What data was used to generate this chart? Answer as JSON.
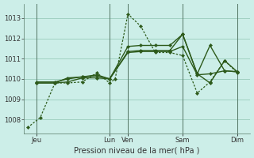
{
  "background_color": "#cceee8",
  "grid_color": "#99ccbb",
  "line_color": "#2d5a1b",
  "xlabel": "Pression niveau de la mer( hPa )",
  "yticks": [
    1008,
    1009,
    1010,
    1011,
    1012,
    1013
  ],
  "ylim": [
    1007.3,
    1013.7
  ],
  "xlim": [
    -0.2,
    12.2
  ],
  "xlabel_fontsize": 7,
  "ytick_fontsize": 6,
  "xtick_fontsize": 6,
  "xtick_labels": [
    "Jeu",
    "Lun",
    "Ven",
    "Sam",
    "Dim"
  ],
  "xtick_positions": [
    0.5,
    4.5,
    5.5,
    8.5,
    11.5
  ],
  "vline_positions": [
    0.5,
    4.5,
    5.5,
    8.5,
    11.5
  ],
  "series": [
    {
      "x": [
        0.0,
        0.7,
        1.5,
        2.2,
        3.0,
        3.8,
        4.5,
        4.8,
        5.5,
        6.2,
        7.0,
        7.8,
        8.5,
        9.3,
        10.0,
        10.8,
        11.5
      ],
      "y": [
        1007.6,
        1008.1,
        1009.8,
        1009.8,
        1009.85,
        1010.3,
        1009.8,
        1010.0,
        1013.2,
        1012.6,
        1011.3,
        1011.3,
        1011.15,
        1009.3,
        1009.85,
        1010.9,
        1010.3
      ],
      "style": "dotted",
      "linewidth": 0.9,
      "markersize": 2.2
    },
    {
      "x": [
        0.5,
        1.5,
        2.2,
        3.0,
        3.8,
        4.5,
        5.5,
        6.2,
        7.0,
        7.8,
        8.5,
        9.3,
        10.0,
        10.8,
        11.5
      ],
      "y": [
        1009.8,
        1009.8,
        1009.85,
        1010.05,
        1010.05,
        1010.0,
        1011.3,
        1011.35,
        1011.35,
        1011.35,
        1011.6,
        1010.2,
        1010.25,
        1010.4,
        1010.35
      ],
      "style": "solid",
      "linewidth": 1.0,
      "markersize": 2.2
    },
    {
      "x": [
        0.5,
        1.5,
        2.2,
        3.0,
        3.8,
        4.5,
        5.5,
        6.2,
        7.0,
        7.8,
        8.5,
        9.3,
        10.0,
        10.8,
        11.5
      ],
      "y": [
        1009.85,
        1009.85,
        1010.0,
        1010.1,
        1010.15,
        1010.0,
        1011.35,
        1011.4,
        1011.4,
        1011.4,
        1012.2,
        1010.25,
        1009.8,
        1010.9,
        1010.35
      ],
      "style": "solid",
      "linewidth": 1.0,
      "markersize": 2.2
    },
    {
      "x": [
        0.5,
        1.5,
        2.2,
        3.0,
        3.8,
        4.5,
        5.5,
        6.2,
        7.0,
        7.8,
        8.5,
        9.3,
        10.0,
        10.8,
        11.5
      ],
      "y": [
        1009.8,
        1009.8,
        1010.05,
        1010.1,
        1010.2,
        1010.0,
        1011.6,
        1011.65,
        1011.65,
        1011.65,
        1012.2,
        1010.25,
        1011.65,
        1010.4,
        1010.35
      ],
      "style": "solid",
      "linewidth": 1.0,
      "markersize": 2.2
    }
  ]
}
